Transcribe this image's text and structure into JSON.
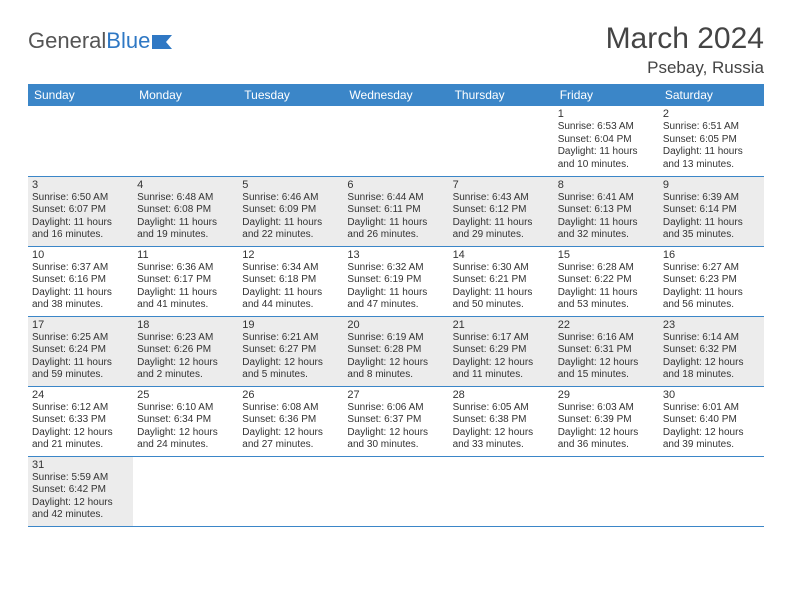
{
  "logo": {
    "text1": "General",
    "text2": "Blue"
  },
  "header": {
    "month_title": "March 2024",
    "location": "Psebay, Russia"
  },
  "colors": {
    "header_bg": "#3b86c8",
    "header_text": "#ffffff",
    "row_border": "#3b86c8",
    "shade_bg": "#ececec",
    "body_text": "#333333",
    "title_text": "#444444"
  },
  "days_of_week": [
    "Sunday",
    "Monday",
    "Tuesday",
    "Wednesday",
    "Thursday",
    "Friday",
    "Saturday"
  ],
  "weeks": [
    [
      null,
      null,
      null,
      null,
      null,
      {
        "n": "1",
        "sr": "Sunrise: 6:53 AM",
        "ss": "Sunset: 6:04 PM",
        "dl": "Daylight: 11 hours and 10 minutes."
      },
      {
        "n": "2",
        "sr": "Sunrise: 6:51 AM",
        "ss": "Sunset: 6:05 PM",
        "dl": "Daylight: 11 hours and 13 minutes."
      }
    ],
    [
      {
        "n": "3",
        "sr": "Sunrise: 6:50 AM",
        "ss": "Sunset: 6:07 PM",
        "dl": "Daylight: 11 hours and 16 minutes."
      },
      {
        "n": "4",
        "sr": "Sunrise: 6:48 AM",
        "ss": "Sunset: 6:08 PM",
        "dl": "Daylight: 11 hours and 19 minutes."
      },
      {
        "n": "5",
        "sr": "Sunrise: 6:46 AM",
        "ss": "Sunset: 6:09 PM",
        "dl": "Daylight: 11 hours and 22 minutes."
      },
      {
        "n": "6",
        "sr": "Sunrise: 6:44 AM",
        "ss": "Sunset: 6:11 PM",
        "dl": "Daylight: 11 hours and 26 minutes."
      },
      {
        "n": "7",
        "sr": "Sunrise: 6:43 AM",
        "ss": "Sunset: 6:12 PM",
        "dl": "Daylight: 11 hours and 29 minutes."
      },
      {
        "n": "8",
        "sr": "Sunrise: 6:41 AM",
        "ss": "Sunset: 6:13 PM",
        "dl": "Daylight: 11 hours and 32 minutes."
      },
      {
        "n": "9",
        "sr": "Sunrise: 6:39 AM",
        "ss": "Sunset: 6:14 PM",
        "dl": "Daylight: 11 hours and 35 minutes."
      }
    ],
    [
      {
        "n": "10",
        "sr": "Sunrise: 6:37 AM",
        "ss": "Sunset: 6:16 PM",
        "dl": "Daylight: 11 hours and 38 minutes."
      },
      {
        "n": "11",
        "sr": "Sunrise: 6:36 AM",
        "ss": "Sunset: 6:17 PM",
        "dl": "Daylight: 11 hours and 41 minutes."
      },
      {
        "n": "12",
        "sr": "Sunrise: 6:34 AM",
        "ss": "Sunset: 6:18 PM",
        "dl": "Daylight: 11 hours and 44 minutes."
      },
      {
        "n": "13",
        "sr": "Sunrise: 6:32 AM",
        "ss": "Sunset: 6:19 PM",
        "dl": "Daylight: 11 hours and 47 minutes."
      },
      {
        "n": "14",
        "sr": "Sunrise: 6:30 AM",
        "ss": "Sunset: 6:21 PM",
        "dl": "Daylight: 11 hours and 50 minutes."
      },
      {
        "n": "15",
        "sr": "Sunrise: 6:28 AM",
        "ss": "Sunset: 6:22 PM",
        "dl": "Daylight: 11 hours and 53 minutes."
      },
      {
        "n": "16",
        "sr": "Sunrise: 6:27 AM",
        "ss": "Sunset: 6:23 PM",
        "dl": "Daylight: 11 hours and 56 minutes."
      }
    ],
    [
      {
        "n": "17",
        "sr": "Sunrise: 6:25 AM",
        "ss": "Sunset: 6:24 PM",
        "dl": "Daylight: 11 hours and 59 minutes."
      },
      {
        "n": "18",
        "sr": "Sunrise: 6:23 AM",
        "ss": "Sunset: 6:26 PM",
        "dl": "Daylight: 12 hours and 2 minutes."
      },
      {
        "n": "19",
        "sr": "Sunrise: 6:21 AM",
        "ss": "Sunset: 6:27 PM",
        "dl": "Daylight: 12 hours and 5 minutes."
      },
      {
        "n": "20",
        "sr": "Sunrise: 6:19 AM",
        "ss": "Sunset: 6:28 PM",
        "dl": "Daylight: 12 hours and 8 minutes."
      },
      {
        "n": "21",
        "sr": "Sunrise: 6:17 AM",
        "ss": "Sunset: 6:29 PM",
        "dl": "Daylight: 12 hours and 11 minutes."
      },
      {
        "n": "22",
        "sr": "Sunrise: 6:16 AM",
        "ss": "Sunset: 6:31 PM",
        "dl": "Daylight: 12 hours and 15 minutes."
      },
      {
        "n": "23",
        "sr": "Sunrise: 6:14 AM",
        "ss": "Sunset: 6:32 PM",
        "dl": "Daylight: 12 hours and 18 minutes."
      }
    ],
    [
      {
        "n": "24",
        "sr": "Sunrise: 6:12 AM",
        "ss": "Sunset: 6:33 PM",
        "dl": "Daylight: 12 hours and 21 minutes."
      },
      {
        "n": "25",
        "sr": "Sunrise: 6:10 AM",
        "ss": "Sunset: 6:34 PM",
        "dl": "Daylight: 12 hours and 24 minutes."
      },
      {
        "n": "26",
        "sr": "Sunrise: 6:08 AM",
        "ss": "Sunset: 6:36 PM",
        "dl": "Daylight: 12 hours and 27 minutes."
      },
      {
        "n": "27",
        "sr": "Sunrise: 6:06 AM",
        "ss": "Sunset: 6:37 PM",
        "dl": "Daylight: 12 hours and 30 minutes."
      },
      {
        "n": "28",
        "sr": "Sunrise: 6:05 AM",
        "ss": "Sunset: 6:38 PM",
        "dl": "Daylight: 12 hours and 33 minutes."
      },
      {
        "n": "29",
        "sr": "Sunrise: 6:03 AM",
        "ss": "Sunset: 6:39 PM",
        "dl": "Daylight: 12 hours and 36 minutes."
      },
      {
        "n": "30",
        "sr": "Sunrise: 6:01 AM",
        "ss": "Sunset: 6:40 PM",
        "dl": "Daylight: 12 hours and 39 minutes."
      }
    ],
    [
      {
        "n": "31",
        "sr": "Sunrise: 5:59 AM",
        "ss": "Sunset: 6:42 PM",
        "dl": "Daylight: 12 hours and 42 minutes."
      },
      null,
      null,
      null,
      null,
      null,
      null
    ]
  ]
}
